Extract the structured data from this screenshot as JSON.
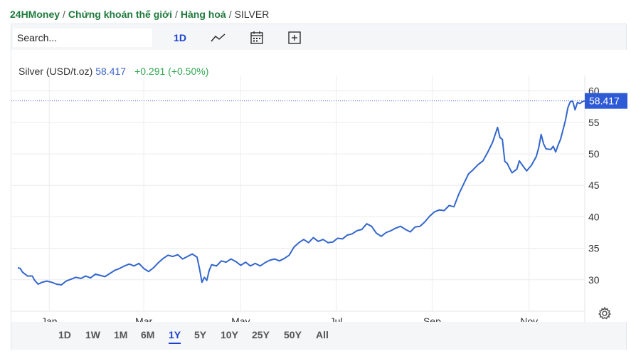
{
  "breadcrumb": {
    "home": "24HMoney",
    "section": "Chứng khoán thế giới",
    "category": "Hàng hoá",
    "current": "SILVER",
    "separator": "/"
  },
  "toolbar": {
    "search_placeholder": "Search...",
    "interval": "1D",
    "chart_style_icon": "line-chart-icon",
    "compare_icon": "calendar-icon",
    "add_icon": "plus-square-icon"
  },
  "legend": {
    "title": "Silver (USD/t.oz)",
    "price": "58.417",
    "change": "+0.291 (+0.50%)"
  },
  "ranges": {
    "items": [
      "1D",
      "1W",
      "1M",
      "6M",
      "1Y",
      "5Y",
      "10Y",
      "25Y",
      "50Y",
      "All"
    ],
    "active": "1Y"
  },
  "settings_icon": "gear-icon",
  "colors": {
    "line": "#3366cc",
    "price_tag": "#2f5ad6",
    "change_positive": "#32a852",
    "brand_green": "#1e7a3c",
    "active_blue": "#1a3fd1"
  },
  "chart_data": {
    "type": "line",
    "title": "Silver (USD/t.oz)",
    "y_axis_position": "right",
    "grid": true,
    "yticks": [
      "30",
      "35",
      "40",
      "45",
      "50",
      "55",
      "60"
    ],
    "ytick_values": [
      30,
      35,
      40,
      45,
      50,
      55,
      60
    ],
    "xticks": [
      "Jan",
      "Mar",
      "May",
      "Jul",
      "Sep",
      "Nov"
    ],
    "xtick_values": [
      0.65,
      2.6,
      4.6,
      6.57,
      8.55,
      10.55
    ],
    "xlim": [
      0,
      11.7
    ],
    "ylim": [
      25,
      62
    ],
    "last_value": 58.417,
    "last_value_label": "58.417",
    "series": [
      {
        "values": [
          [
            0.0,
            31.9
          ],
          [
            0.05,
            31.8
          ],
          [
            0.1,
            31.2
          ],
          [
            0.2,
            30.6
          ],
          [
            0.3,
            30.6
          ],
          [
            0.35,
            29.9
          ],
          [
            0.42,
            29.3
          ],
          [
            0.5,
            29.6
          ],
          [
            0.6,
            29.8
          ],
          [
            0.7,
            29.6
          ],
          [
            0.8,
            29.3
          ],
          [
            0.9,
            29.2
          ],
          [
            1.0,
            29.8
          ],
          [
            1.1,
            30.1
          ],
          [
            1.2,
            30.4
          ],
          [
            1.3,
            30.2
          ],
          [
            1.4,
            30.6
          ],
          [
            1.5,
            30.3
          ],
          [
            1.6,
            30.9
          ],
          [
            1.7,
            30.7
          ],
          [
            1.8,
            30.5
          ],
          [
            1.9,
            31.0
          ],
          [
            2.0,
            31.5
          ],
          [
            2.1,
            31.8
          ],
          [
            2.2,
            32.2
          ],
          [
            2.3,
            32.5
          ],
          [
            2.4,
            32.2
          ],
          [
            2.5,
            32.6
          ],
          [
            2.6,
            31.8
          ],
          [
            2.7,
            31.3
          ],
          [
            2.8,
            31.9
          ],
          [
            2.9,
            32.7
          ],
          [
            3.0,
            33.4
          ],
          [
            3.1,
            33.9
          ],
          [
            3.2,
            33.7
          ],
          [
            3.3,
            34.0
          ],
          [
            3.4,
            33.3
          ],
          [
            3.5,
            33.7
          ],
          [
            3.6,
            34.1
          ],
          [
            3.7,
            33.6
          ],
          [
            3.75,
            31.8
          ],
          [
            3.8,
            29.6
          ],
          [
            3.85,
            30.4
          ],
          [
            3.9,
            29.9
          ],
          [
            3.95,
            31.5
          ],
          [
            4.0,
            32.4
          ],
          [
            4.1,
            32.2
          ],
          [
            4.2,
            33.0
          ],
          [
            4.3,
            32.8
          ],
          [
            4.4,
            33.3
          ],
          [
            4.5,
            32.9
          ],
          [
            4.6,
            32.3
          ],
          [
            4.7,
            32.8
          ],
          [
            4.8,
            32.2
          ],
          [
            4.9,
            32.6
          ],
          [
            5.0,
            32.2
          ],
          [
            5.1,
            32.7
          ],
          [
            5.2,
            33.1
          ],
          [
            5.3,
            33.3
          ],
          [
            5.4,
            33.0
          ],
          [
            5.5,
            33.4
          ],
          [
            5.6,
            33.9
          ],
          [
            5.7,
            35.2
          ],
          [
            5.8,
            35.9
          ],
          [
            5.9,
            36.4
          ],
          [
            6.0,
            35.9
          ],
          [
            6.1,
            36.7
          ],
          [
            6.2,
            36.1
          ],
          [
            6.3,
            36.4
          ],
          [
            6.4,
            35.9
          ],
          [
            6.5,
            36.0
          ],
          [
            6.6,
            36.6
          ],
          [
            6.7,
            36.5
          ],
          [
            6.8,
            37.1
          ],
          [
            6.9,
            37.3
          ],
          [
            7.0,
            37.8
          ],
          [
            7.1,
            38.0
          ],
          [
            7.2,
            38.9
          ],
          [
            7.3,
            38.5
          ],
          [
            7.4,
            37.4
          ],
          [
            7.5,
            36.9
          ],
          [
            7.6,
            37.5
          ],
          [
            7.7,
            37.8
          ],
          [
            7.8,
            38.2
          ],
          [
            7.9,
            38.5
          ],
          [
            8.0,
            38.0
          ],
          [
            8.1,
            37.6
          ],
          [
            8.2,
            38.4
          ],
          [
            8.3,
            38.5
          ],
          [
            8.4,
            39.2
          ],
          [
            8.5,
            40.1
          ],
          [
            8.6,
            40.8
          ],
          [
            8.7,
            41.1
          ],
          [
            8.8,
            41.0
          ],
          [
            8.9,
            41.8
          ],
          [
            9.0,
            41.6
          ],
          [
            9.1,
            43.6
          ],
          [
            9.2,
            45.2
          ],
          [
            9.3,
            46.8
          ],
          [
            9.4,
            47.5
          ],
          [
            9.5,
            48.3
          ],
          [
            9.6,
            48.9
          ],
          [
            9.7,
            50.3
          ],
          [
            9.8,
            51.9
          ],
          [
            9.9,
            54.2
          ],
          [
            9.95,
            52.6
          ],
          [
            10.0,
            52.3
          ],
          [
            10.05,
            48.8
          ],
          [
            10.1,
            48.5
          ],
          [
            10.15,
            47.7
          ],
          [
            10.2,
            47.0
          ],
          [
            10.3,
            47.6
          ],
          [
            10.35,
            48.9
          ],
          [
            10.45,
            47.8
          ],
          [
            10.5,
            47.3
          ],
          [
            10.6,
            48.2
          ],
          [
            10.7,
            49.6
          ],
          [
            10.75,
            51.0
          ],
          [
            10.8,
            53.1
          ],
          [
            10.85,
            51.6
          ],
          [
            10.9,
            50.8
          ],
          [
            11.0,
            50.7
          ],
          [
            11.05,
            51.2
          ],
          [
            11.1,
            50.3
          ],
          [
            11.15,
            51.4
          ],
          [
            11.2,
            52.3
          ],
          [
            11.3,
            55.3
          ],
          [
            11.35,
            57.3
          ],
          [
            11.4,
            58.3
          ],
          [
            11.45,
            58.4
          ],
          [
            11.5,
            57.0
          ],
          [
            11.55,
            58.2
          ],
          [
            11.6,
            58.0
          ],
          [
            11.65,
            58.3
          ],
          [
            11.7,
            58.417
          ]
        ]
      }
    ]
  }
}
